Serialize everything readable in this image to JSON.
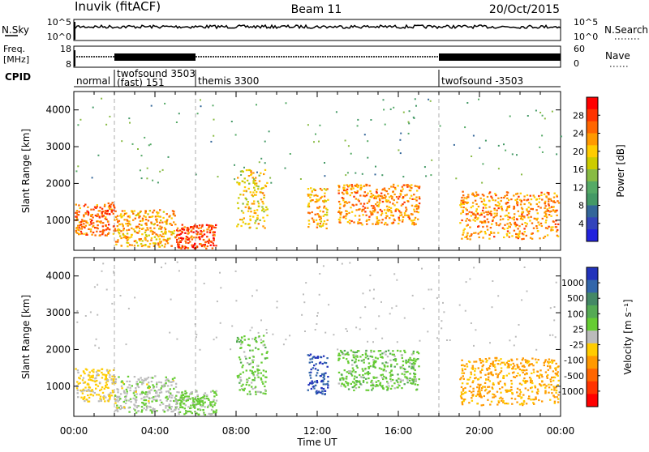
{
  "header": {
    "station": "Inuvik (fitACF)",
    "beam": "Beam 11",
    "date": "20/Oct/2015"
  },
  "top_panels": {
    "nsky_label": "N.Sky",
    "nsky_ticks": [
      "10^5",
      "10^0"
    ],
    "nsearch_label": "N.Search",
    "nsearch_ticks": [
      "10^5",
      "10^0"
    ],
    "freq_label_1": "Freq.",
    "freq_label_2": "[MHz]",
    "freq_ticks": [
      "18",
      "8"
    ],
    "nave_label": "Nave",
    "nave_ticks": [
      "60",
      "0"
    ],
    "cpid_label": "CPID",
    "cpid_segments": [
      {
        "start": 0.0,
        "end": 2.0,
        "label": "normal"
      },
      {
        "start": 2.0,
        "end": 6.0,
        "label": "twofsound 3503",
        "label2": "(fast) 151"
      },
      {
        "start": 6.0,
        "end": 18.0,
        "label": "themis 3300"
      },
      {
        "start": 18.0,
        "end": 24.0,
        "label": "twofsound -3503"
      }
    ]
  },
  "power_panel": {
    "ylabel": "Slant Range [km]",
    "colorbar_label": "Power [dB]",
    "colorbar_ticks": [
      "28",
      "24",
      "20",
      "16",
      "12",
      "8",
      "4"
    ],
    "colorbar_colors": [
      "#ff0000",
      "#ff3300",
      "#ff6600",
      "#ff9900",
      "#ffcc00",
      "#cccc00",
      "#88bb44",
      "#55aa66",
      "#449966",
      "#336699",
      "#3344bb",
      "#2222dd"
    ]
  },
  "velocity_panel": {
    "ylabel": "Slant Range [km]",
    "colorbar_label": "Velocity [m s⁻¹]",
    "colorbar_ticks": [
      "1000",
      "500",
      "100",
      "25",
      "-25",
      "-100",
      "-500",
      "-1000"
    ],
    "colorbar_colors": [
      "#2233bb",
      "#3366aa",
      "#448866",
      "#55aa55",
      "#66cc33",
      "#bbbbbb",
      "#ffcc00",
      "#ff9900",
      "#ff6600",
      "#ff3300",
      "#ff0000"
    ]
  },
  "x_axis": {
    "label": "Time UT",
    "ticks": [
      "00:00",
      "04:00",
      "08:00",
      "12:00",
      "16:00",
      "20:00",
      "00:00"
    ]
  },
  "chart_data": [
    {
      "type": "heatmap",
      "title": "Power",
      "xlabel": "Time UT",
      "ylabel": "Slant Range [km]",
      "xlim": [
        0,
        24
      ],
      "ylim": [
        180,
        4500
      ],
      "y_ticks": [
        1000,
        2000,
        3000,
        4000
      ],
      "colorbar": {
        "label": "Power [dB]",
        "min": 0,
        "max": 32
      },
      "regions": [
        {
          "t": [
            0,
            2
          ],
          "r": [
            600,
            1500
          ],
          "value": 26
        },
        {
          "t": [
            2,
            5
          ],
          "r": [
            300,
            1300
          ],
          "value": 22
        },
        {
          "t": [
            5,
            7
          ],
          "r": [
            200,
            900
          ],
          "value": 28
        },
        {
          "t": [
            8,
            9.5
          ],
          "r": [
            800,
            2400
          ],
          "value": 20
        },
        {
          "t": [
            11.5,
            12.5
          ],
          "r": [
            800,
            1900
          ],
          "value": 22
        },
        {
          "t": [
            13,
            17
          ],
          "r": [
            900,
            2000
          ],
          "value": 24
        },
        {
          "t": [
            19,
            24
          ],
          "r": [
            500,
            1800
          ],
          "value": 24
        }
      ]
    },
    {
      "type": "heatmap",
      "title": "Velocity",
      "xlabel": "Time UT",
      "ylabel": "Slant Range [km]",
      "xlim": [
        0,
        24
      ],
      "ylim": [
        180,
        4500
      ],
      "y_ticks": [
        1000,
        2000,
        3000,
        4000
      ],
      "colorbar": {
        "label": "Velocity [m s⁻¹]",
        "min": -1000,
        "max": 1000
      },
      "regions": [
        {
          "t": [
            0,
            2
          ],
          "r": [
            600,
            1500
          ],
          "value": -150
        },
        {
          "t": [
            2,
            5
          ],
          "r": [
            300,
            1300
          ],
          "value": 40
        },
        {
          "t": [
            5,
            7
          ],
          "r": [
            200,
            900
          ],
          "value": 150
        },
        {
          "t": [
            8,
            9.5
          ],
          "r": [
            800,
            2400
          ],
          "value": 200
        },
        {
          "t": [
            11.5,
            12.5
          ],
          "r": [
            800,
            1900
          ],
          "value": 900
        },
        {
          "t": [
            13,
            17
          ],
          "r": [
            900,
            2000
          ],
          "value": 200
        },
        {
          "t": [
            19,
            24
          ],
          "r": [
            500,
            1800
          ],
          "value": -350
        }
      ]
    }
  ]
}
